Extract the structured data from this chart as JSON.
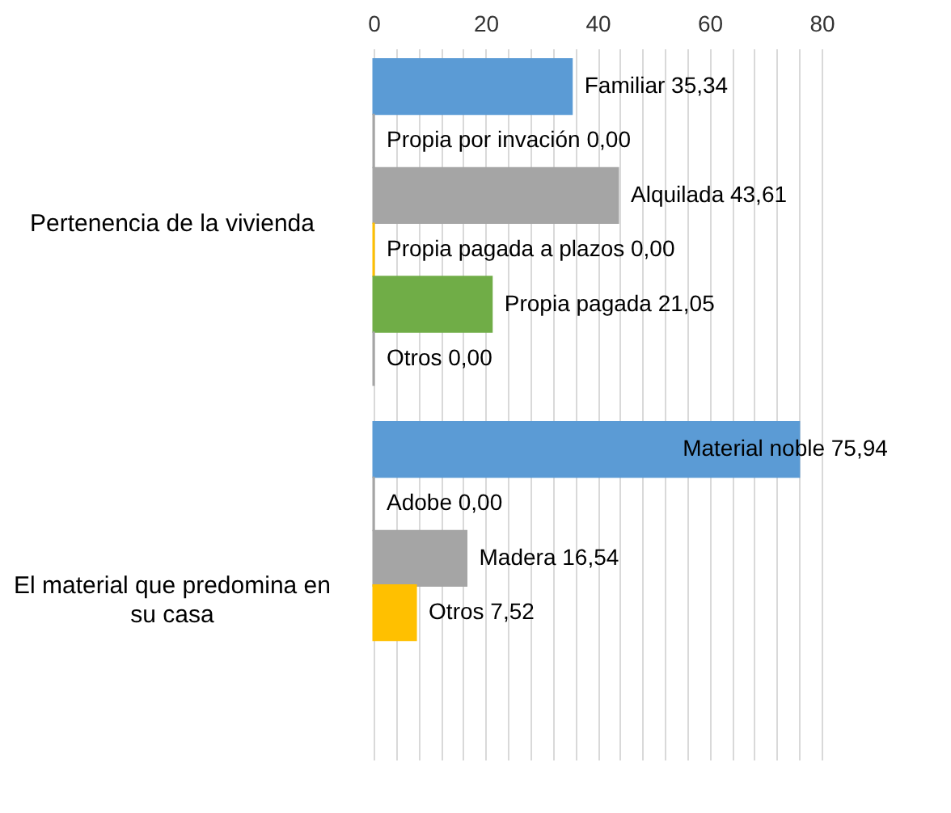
{
  "chart_data": {
    "type": "bar",
    "orientation": "horizontal",
    "categories": [
      "Pertenencia de la vivienda",
      "El material que predomina en su casa"
    ],
    "series": [
      {
        "color": "#5b9bd5",
        "values": [
          35.34,
          75.94
        ],
        "value_labels": [
          "Familiar 35,34",
          "Material noble  75,94"
        ]
      },
      {
        "color": "#a5a5a5",
        "values": [
          0.0,
          0.0
        ],
        "value_labels": [
          "Propia por invación 0,00",
          "Adobe   0,00"
        ]
      },
      {
        "color": "#a5a5a5",
        "values": [
          43.61,
          16.54
        ],
        "value_labels": [
          "Alquilada 43,61",
          "Madera   16,54"
        ]
      },
      {
        "color": "#ffc000",
        "values": [
          0.0,
          7.52
        ],
        "value_labels": [
          "Propia pagada a plazos 0,00",
          "Otros 7,52"
        ]
      },
      {
        "color": "#70ad47",
        "values": [
          21.05,
          null
        ],
        "value_labels": [
          "Propia pagada 21,05",
          null
        ]
      },
      {
        "color": "#a5a5a5",
        "values": [
          0.0,
          null
        ],
        "value_labels": [
          "Otros 0,00",
          null
        ]
      }
    ],
    "xlim": [
      0,
      80
    ],
    "xticks": [
      0,
      {
        "value": 4,
        "label": null
      },
      {
        "value": 8,
        "label": null
      },
      {
        "value": 12,
        "label": null
      },
      {
        "value": 16,
        "label": null
      },
      20,
      {
        "value": 24,
        "label": null
      },
      {
        "value": 28,
        "label": null
      },
      {
        "value": 32,
        "label": null
      },
      {
        "value": 36,
        "label": null
      },
      40,
      {
        "value": 44,
        "label": null
      },
      {
        "value": 48,
        "label": null
      },
      {
        "value": 52,
        "label": null
      },
      {
        "value": 56,
        "label": null
      },
      60,
      {
        "value": 64,
        "label": null
      },
      {
        "value": 68,
        "label": null
      },
      {
        "value": 72,
        "label": null
      },
      {
        "value": 76,
        "label": null
      },
      80
    ],
    "grid": "x",
    "legend": false
  }
}
